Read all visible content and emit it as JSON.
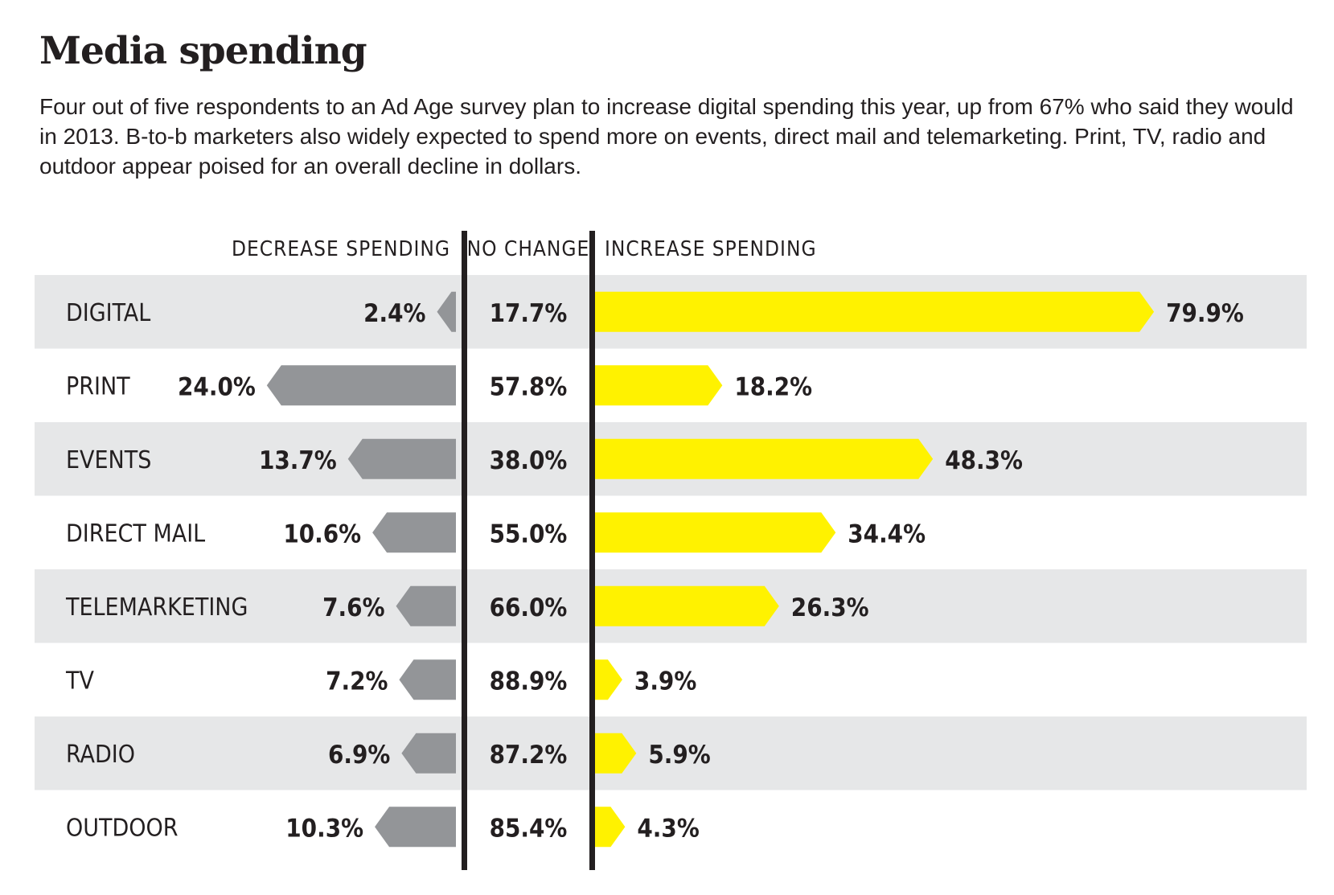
{
  "title": "Media spending",
  "subtitle": "Four out of five respondents to an Ad Age survey plan to increase digital spending this year, up from 67% who said they would in 2013. B-to-b marketers also widely expected to spend more on events, direct mail and telemarketing. Print, TV, radio and outdoor appear poised for an overall decline in dollars.",
  "chart_data": {
    "type": "bar",
    "columns": [
      "DECREASE SPENDING",
      "NO CHANGE",
      "INCREASE SPENDING"
    ],
    "categories": [
      "DIGITAL",
      "PRINT",
      "EVENTS",
      "DIRECT MAIL",
      "TELEMARKETING",
      "TV",
      "RADIO",
      "OUTDOOR"
    ],
    "series": [
      {
        "name": "DECREASE SPENDING",
        "values": [
          2.4,
          24.0,
          13.7,
          10.6,
          7.6,
          7.2,
          6.9,
          10.3
        ],
        "labels": [
          "2.4%",
          "24.0%",
          "13.7%",
          "10.6%",
          "7.6%",
          "7.2%",
          "6.9%",
          "10.3%"
        ],
        "color": "#939598"
      },
      {
        "name": "NO CHANGE",
        "values": [
          17.7,
          57.8,
          38.0,
          55.0,
          66.0,
          88.9,
          87.2,
          85.4
        ],
        "labels": [
          "17.7%",
          "57.8%",
          "38.0%",
          "55.0%",
          "66.0%",
          "88.9%",
          "87.2%",
          "85.4%"
        ]
      },
      {
        "name": "INCREASE SPENDING",
        "values": [
          79.9,
          18.2,
          48.3,
          34.4,
          26.3,
          3.9,
          5.9,
          4.3
        ],
        "labels": [
          "79.9%",
          "18.2%",
          "48.3%",
          "34.4%",
          "26.3%",
          "3.9%",
          "5.9%",
          "4.3%"
        ],
        "color": "#fff200"
      }
    ],
    "colors": {
      "row_band": "#e6e7e8",
      "divider": "#231f20"
    }
  }
}
